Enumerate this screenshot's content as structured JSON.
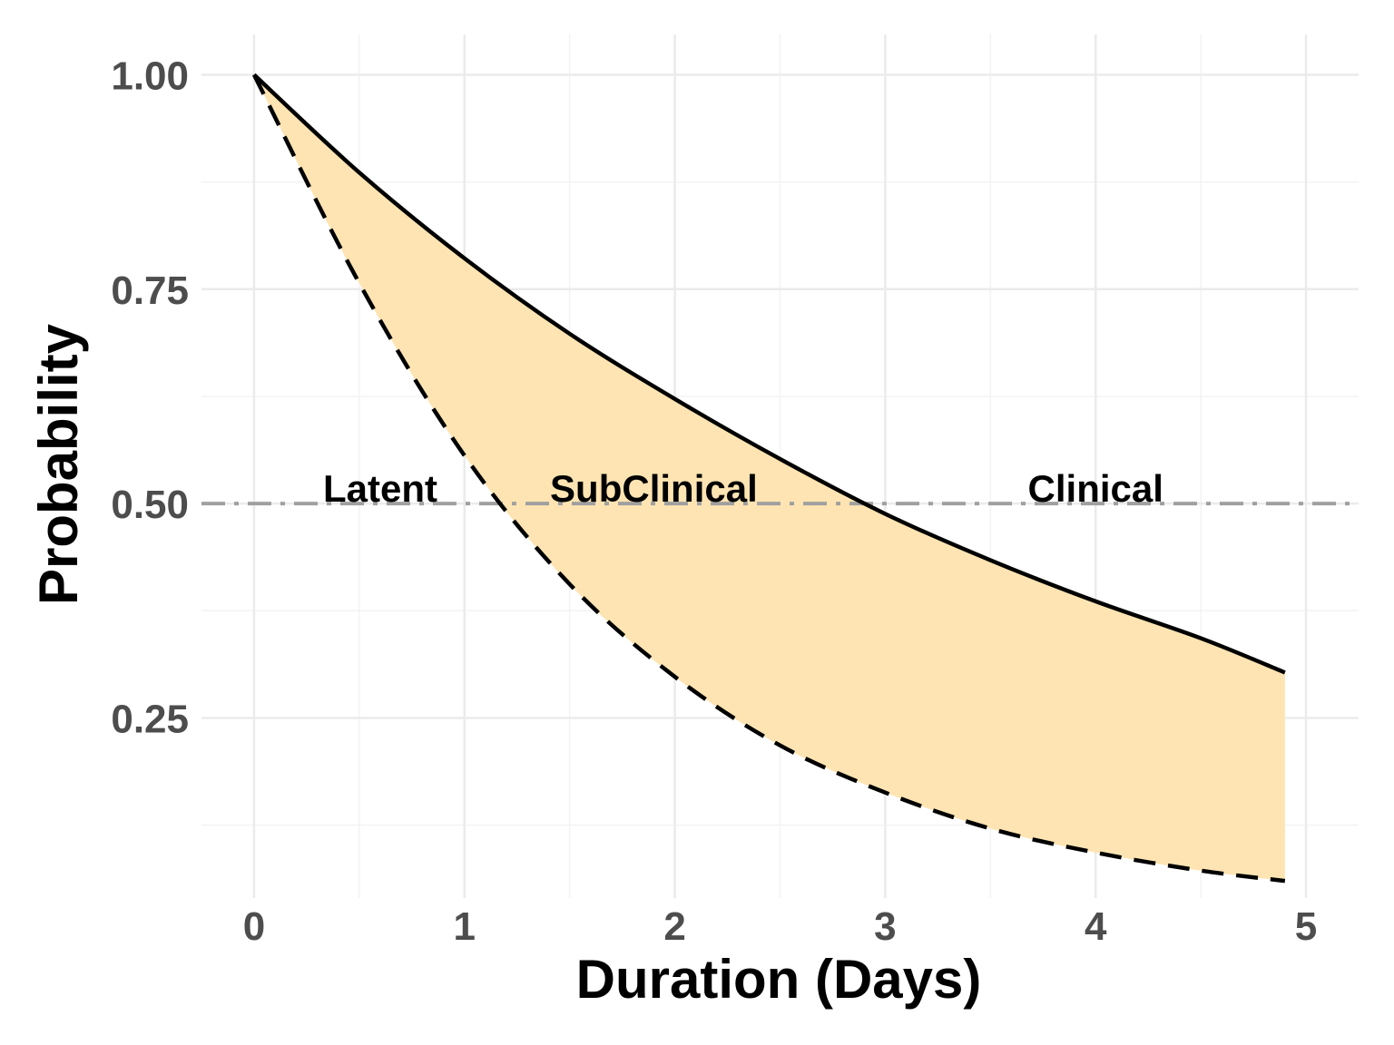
{
  "chart_data": {
    "type": "area",
    "xlabel": "Duration (Days)",
    "ylabel": "Probability",
    "xlim": [
      -0.25,
      5.25
    ],
    "ylim": [
      0.04,
      1.047
    ],
    "x_ticks": [
      0,
      1,
      2,
      3,
      4,
      5
    ],
    "x_tick_labels": [
      "0",
      "1",
      "2",
      "3",
      "4",
      "5"
    ],
    "y_ticks": [
      0.25,
      0.5,
      0.75,
      1.0
    ],
    "y_tick_labels": [
      "0.25",
      "0.50",
      "0.75",
      "1.00"
    ],
    "grid": true,
    "fill_color": "#fde4b2",
    "line_color": "#000000",
    "reference_line": {
      "y": 0.5,
      "style": "dash-dot",
      "color": "#a0a0a0"
    },
    "series": [
      {
        "style": "solid",
        "x": [
          0,
          0.5,
          1,
          1.5,
          2,
          2.5,
          3,
          3.5,
          4,
          4.5,
          4.9
        ],
        "y": [
          1.0,
          0.886,
          0.786,
          0.698,
          0.622,
          0.552,
          0.488,
          0.434,
          0.386,
          0.343,
          0.303
        ]
      },
      {
        "style": "dashed",
        "x": [
          0,
          0.5,
          1,
          1.5,
          2,
          2.5,
          3,
          3.5,
          4,
          4.5,
          4.9
        ],
        "y": [
          1.0,
          0.757,
          0.556,
          0.406,
          0.298,
          0.218,
          0.163,
          0.121,
          0.093,
          0.072,
          0.06
        ]
      }
    ],
    "annotations": [
      {
        "text": "Latent",
        "x": 0.6,
        "y": 0.5
      },
      {
        "text": "SubClinical",
        "x": 1.9,
        "y": 0.5
      },
      {
        "text": "Clinical",
        "x": 4.0,
        "y": 0.5
      }
    ]
  }
}
